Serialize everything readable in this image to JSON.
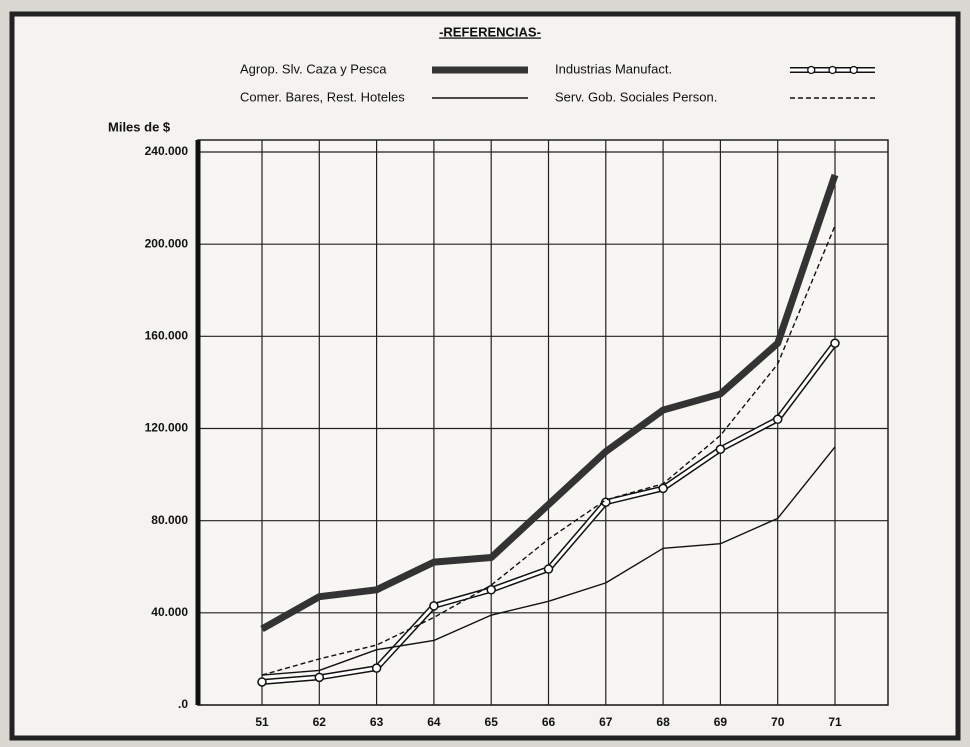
{
  "chart_data": {
    "type": "line",
    "title": "-REFERENCIAS-",
    "y_label": "Miles de $",
    "categories": [
      "51",
      "62",
      "63",
      "64",
      "65",
      "66",
      "67",
      "68",
      "69",
      "70",
      "71"
    ],
    "ylim": [
      0,
      240000
    ],
    "yticks": [
      {
        "value": 0,
        "label": ".0"
      },
      {
        "value": 40000,
        "label": "40.000"
      },
      {
        "value": 80000,
        "label": "80.000"
      },
      {
        "value": 120000,
        "label": "120.000"
      },
      {
        "value": 160000,
        "label": "160.000"
      },
      {
        "value": 200000,
        "label": "200.000"
      },
      {
        "value": 240000,
        "label": "240.000"
      }
    ],
    "grid": true,
    "series": [
      {
        "name": "Agrop. Slv. Caza y Pesca",
        "color": "#333333",
        "style": "thick",
        "values": [
          33000,
          47000,
          50000,
          62000,
          64000,
          87000,
          110000,
          128000,
          135000,
          157000,
          230000
        ]
      },
      {
        "name": "Industrias Manufact.",
        "color": "#111111",
        "style": "double",
        "values": [
          10000,
          12000,
          16000,
          43000,
          50000,
          59000,
          88000,
          94000,
          111000,
          124000,
          157000
        ]
      },
      {
        "name": "Comer. Bares, Rest. Hoteles",
        "color": "#111111",
        "style": "solid",
        "values": [
          13000,
          15000,
          24000,
          28000,
          39000,
          45000,
          53000,
          68000,
          70000,
          81000,
          112000
        ]
      },
      {
        "name": "Serv. Gob. Sociales Person.",
        "color": "#111111",
        "style": "dashed",
        "values": [
          13000,
          20000,
          26000,
          38000,
          52000,
          72000,
          89000,
          96000,
          117000,
          148000,
          208000
        ]
      }
    ]
  }
}
